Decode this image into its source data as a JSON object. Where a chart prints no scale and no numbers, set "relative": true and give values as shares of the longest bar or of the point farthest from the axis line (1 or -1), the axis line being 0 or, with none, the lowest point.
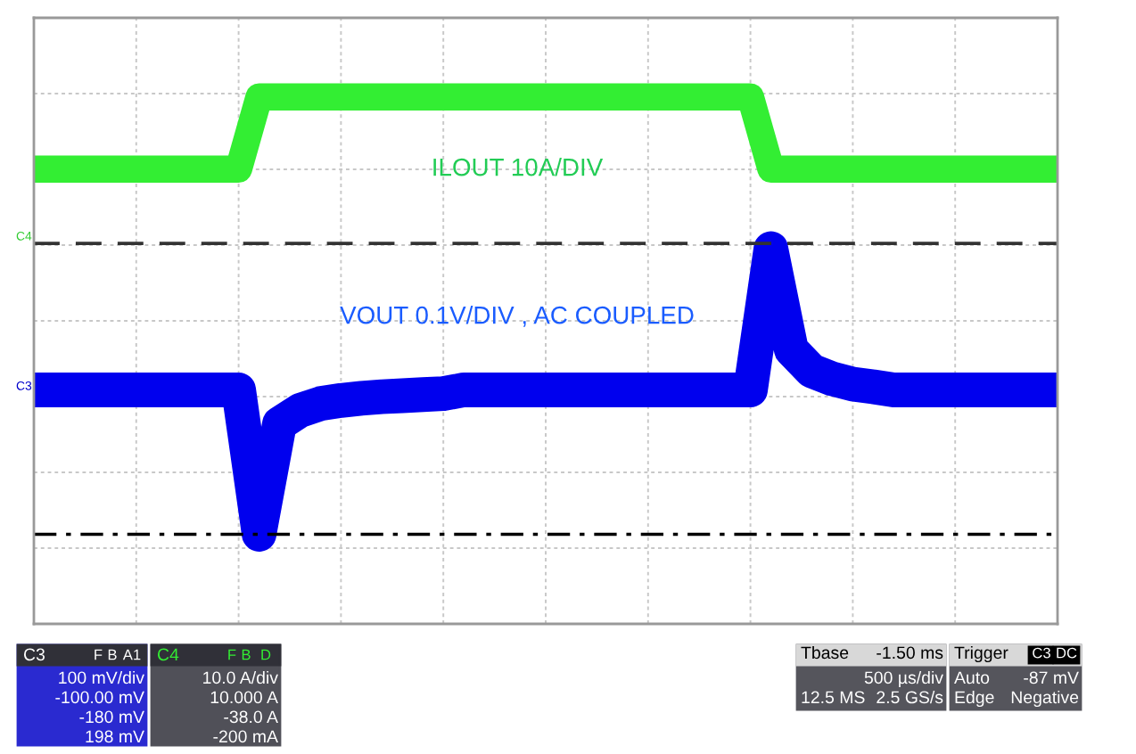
{
  "chart_data": {
    "type": "line",
    "relative": true,
    "grid": true,
    "legend": false,
    "marker": "none",
    "categories": [
      null,
      null,
      null,
      null,
      null,
      null,
      null,
      null,
      null,
      null,
      null,
      null,
      null,
      null,
      null,
      null,
      null,
      null,
      null,
      null,
      null,
      null,
      null,
      null,
      null,
      null,
      null,
      null,
      null,
      null,
      null,
      null,
      null,
      null,
      null,
      null,
      null,
      null,
      null,
      null,
      null,
      null,
      null,
      null,
      null,
      null,
      null,
      null,
      null,
      null,
      null
    ],
    "series": [
      {
        "color": "#33ee33",
        "line_style": "solid",
        "values": [
          0.863,
          0.863,
          0.863,
          0.863,
          0.863,
          0.863,
          0.863,
          0.863,
          0.863,
          0.863,
          0.863,
          1.0,
          1.0,
          1.0,
          1.0,
          1.0,
          1.0,
          1.0,
          1.0,
          1.0,
          1.0,
          1.0,
          1.0,
          1.0,
          1.0,
          1.0,
          1.0,
          1.0,
          1.0,
          1.0,
          1.0,
          1.0,
          1.0,
          1.0,
          1.0,
          1.0,
          0.863,
          0.863,
          0.863,
          0.863,
          0.863,
          0.863,
          0.863,
          0.863,
          0.863,
          0.863,
          0.863,
          0.863,
          0.863,
          0.863,
          0.863
        ]
      },
      {
        "color": "#0000ee",
        "line_style": "solid",
        "values": [
          0.444,
          0.444,
          0.444,
          0.444,
          0.444,
          0.444,
          0.444,
          0.444,
          0.444,
          0.444,
          0.444,
          0.17,
          0.38,
          0.405,
          0.418,
          0.424,
          0.428,
          0.431,
          0.433,
          0.435,
          0.437,
          0.444,
          0.444,
          0.444,
          0.444,
          0.444,
          0.444,
          0.444,
          0.444,
          0.444,
          0.444,
          0.444,
          0.444,
          0.444,
          0.444,
          0.444,
          0.712,
          0.52,
          0.48,
          0.465,
          0.455,
          0.45,
          0.444,
          0.444,
          0.444,
          0.444,
          0.444,
          0.444,
          0.444,
          0.444,
          0.444
        ]
      }
    ],
    "ref_lines": [
      {
        "axis": "y",
        "value": 0.722,
        "color": "#333333",
        "line_style": "dashed"
      },
      {
        "axis": "y",
        "value": 0.17,
        "color": "#000000",
        "line_style": "dashdot"
      }
    ],
    "annotations": [
      "ILOUT 10A/DIV",
      "VOUT 0.1V/DIV , AC COUPLED",
      "C4",
      "C3",
      "C3",
      "F",
      "B",
      "A1",
      "100 mV/div",
      "-100.00 mV",
      "-180 mV",
      "198 mV",
      "C4",
      "F",
      "B",
      "D",
      "10.0 A/div",
      "10.000 A",
      "-38.0 A",
      "-200 mA",
      "Tbase",
      "-1.50 ms",
      "500 µs/div",
      "12.5 MS",
      "2.5 GS/s",
      "Trigger",
      "C3",
      "DC",
      "Auto",
      "-87 mV",
      "Edge",
      "Negative"
    ]
  }
}
